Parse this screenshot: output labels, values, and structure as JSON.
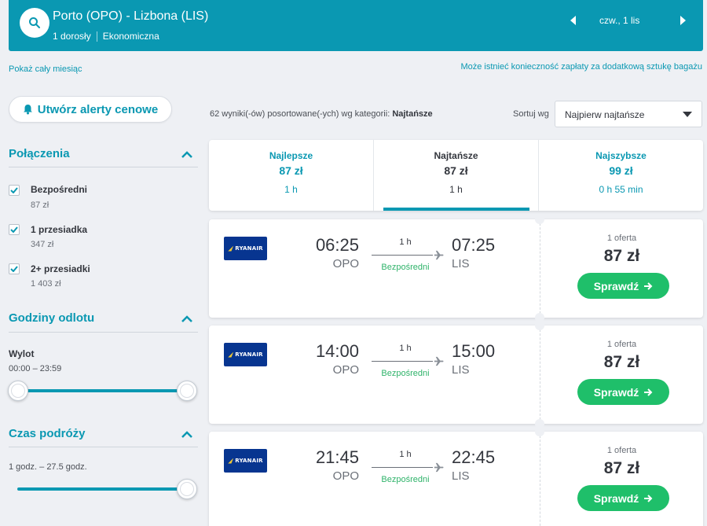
{
  "header": {
    "route": "Porto (OPO) - Lizbona (LIS)",
    "passengers": "1 dorosły",
    "cabin": "Ekonomiczna",
    "date": "czw., 1 lis"
  },
  "top_links": {
    "show_month": "Pokaż cały miesiąc",
    "baggage_note": "Może istnieć konieczność zapłaty za dodatkową sztukę bagażu"
  },
  "sidebar": {
    "alert_button": "Utwórz alerty cenowe",
    "connections": {
      "title": "Połączenia",
      "options": [
        {
          "label": "Bezpośredni",
          "price": "87 zł",
          "checked": true
        },
        {
          "label": "1 przesiadka",
          "price": "347 zł",
          "checked": true
        },
        {
          "label": "2+ przesiadki",
          "price": "1 403 zł",
          "checked": true
        }
      ]
    },
    "departure_times": {
      "title": "Godziny odlotu",
      "label": "Wylot",
      "range": "00:00 – 23:59"
    },
    "travel_time": {
      "title": "Czas podróży",
      "range": "1 godz. – 27.5 godz."
    }
  },
  "results": {
    "count_text": "62 wyniki(-ów) posortowane(-ych) wg kategorii:",
    "count_category": "Najtańsze",
    "sort_label": "Sortuj wg",
    "sort_value": "Najpierw najtańsze"
  },
  "tabs": [
    {
      "label": "Najlepsze",
      "price": "87 zł",
      "duration": "1 h",
      "active": false
    },
    {
      "label": "Najtańsze",
      "price": "87 zł",
      "duration": "1 h",
      "active": true
    },
    {
      "label": "Najszybsze",
      "price": "99 zł",
      "duration": "0 h 55 min",
      "active": false
    }
  ],
  "flights": [
    {
      "airline": "RYANAIR",
      "dep_time": "06:25",
      "dep_code": "OPO",
      "arr_time": "07:25",
      "arr_code": "LIS",
      "duration": "1 h",
      "stops": "Bezpośredni",
      "offers": "1 oferta",
      "price": "87 zł",
      "button": "Sprawdź"
    },
    {
      "airline": "RYANAIR",
      "dep_time": "14:00",
      "dep_code": "OPO",
      "arr_time": "15:00",
      "arr_code": "LIS",
      "duration": "1 h",
      "stops": "Bezpośredni",
      "offers": "1 oferta",
      "price": "87 zł",
      "button": "Sprawdź"
    },
    {
      "airline": "RYANAIR",
      "dep_time": "21:45",
      "dep_code": "OPO",
      "arr_time": "22:45",
      "arr_code": "LIS",
      "duration": "1 h",
      "stops": "Bezpośredni",
      "offers": "1 oferta",
      "price": "87 zł",
      "button": "Sprawdź"
    }
  ],
  "colors": {
    "accent": "#0a98b2",
    "cta": "#1fbf6a",
    "direct": "#2fb36a",
    "airline_logo": "#073590"
  }
}
